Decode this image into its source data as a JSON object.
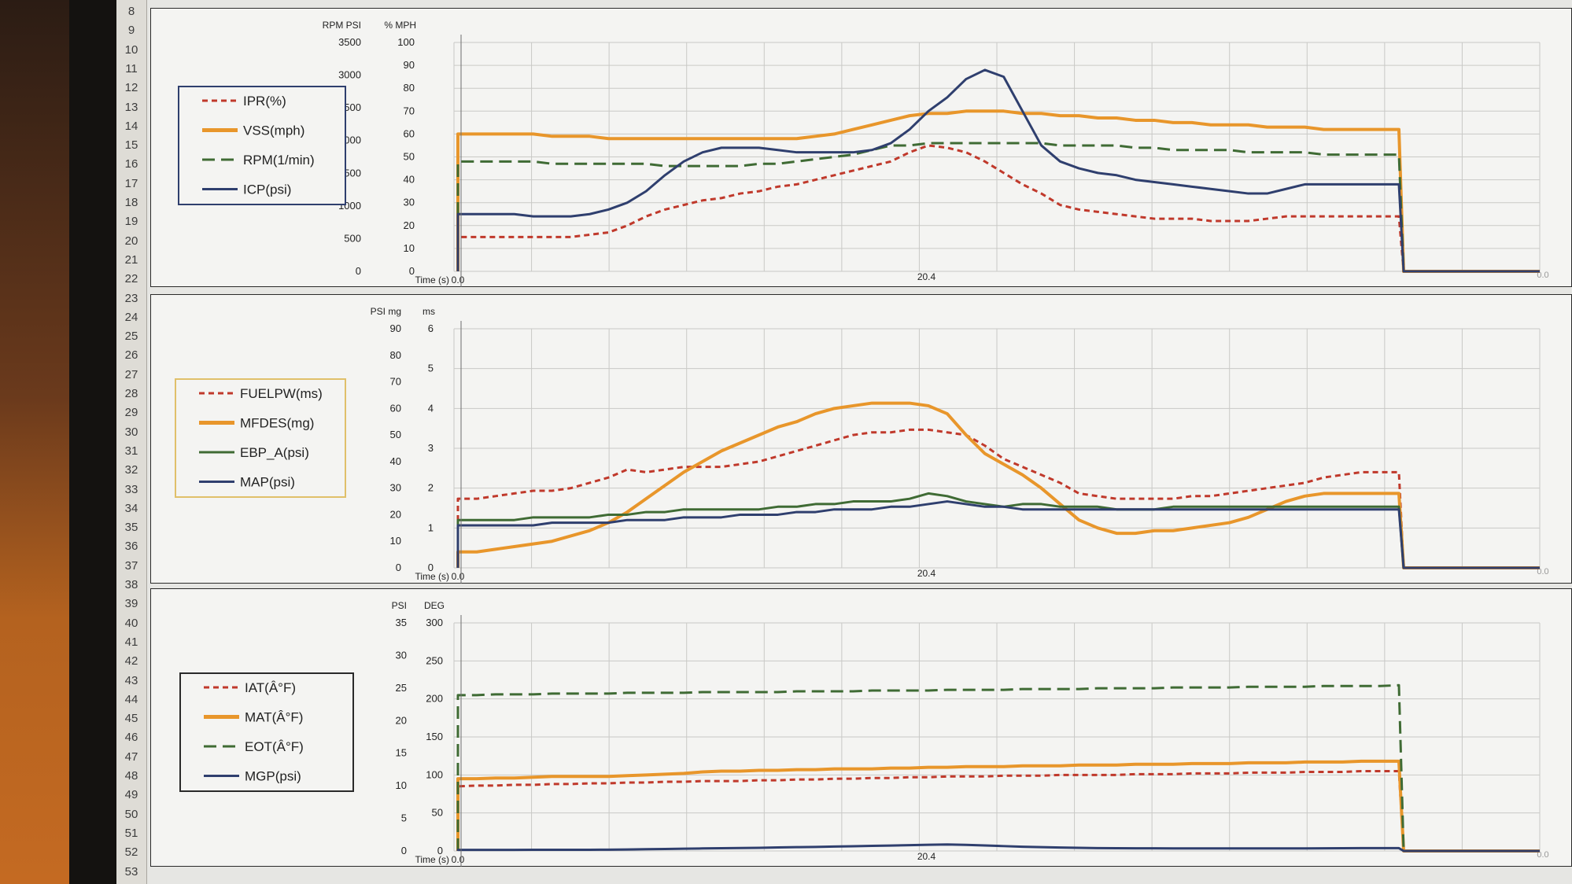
{
  "row_numbers": [
    "8",
    "9",
    "10",
    "11",
    "12",
    "13",
    "14",
    "15",
    "16",
    "17",
    "18",
    "19",
    "20",
    "21",
    "22",
    "23",
    "24",
    "25",
    "26",
    "27",
    "28",
    "29",
    "30",
    "31",
    "32",
    "33",
    "34",
    "35",
    "36",
    "37",
    "38",
    "39",
    "40",
    "41",
    "42",
    "43",
    "44",
    "45",
    "46",
    "47",
    "48",
    "49",
    "50",
    "51",
    "52",
    "53"
  ],
  "chart_data": [
    {
      "type": "line",
      "title": "",
      "axis_titles": {
        "rpm_psi": "RPM PSI",
        "pct_mph": "% MPH"
      },
      "xlabel": "Time (s)",
      "x_tick_labels": [
        "0.0",
        "20.4",
        "0.0"
      ],
      "y_ticks_left": [
        "0",
        "500",
        "1000",
        "1500",
        "2000",
        "2500",
        "3000",
        "3500"
      ],
      "y_ticks_right": [
        "0",
        "10",
        "20",
        "30",
        "40",
        "50",
        "60",
        "70",
        "80",
        "90",
        "100"
      ],
      "ylim": [
        0,
        100
      ],
      "legend_position": "left",
      "grid": true,
      "x": [
        0,
        2,
        4,
        6,
        8,
        10,
        12,
        14,
        16,
        18,
        20,
        22,
        24,
        26,
        28,
        30,
        32,
        34,
        36,
        38,
        40,
        42,
        44,
        46,
        48,
        50,
        52,
        54,
        56,
        58,
        60,
        62,
        64,
        66,
        68,
        70,
        72,
        74,
        76,
        78,
        80,
        82,
        84,
        86,
        88,
        90,
        92,
        94,
        96,
        98,
        100
      ],
      "series": [
        {
          "name": "IPR(%)",
          "color": "#c0392b",
          "dash": "short",
          "values": [
            15,
            15,
            15,
            15,
            15,
            15,
            15,
            16,
            17,
            20,
            24,
            27,
            29,
            31,
            32,
            34,
            35,
            37,
            38,
            40,
            42,
            44,
            46,
            48,
            52,
            55,
            54,
            52,
            48,
            43,
            38,
            34,
            29,
            27,
            26,
            25,
            24,
            23,
            23,
            23,
            22,
            22,
            22,
            23,
            24,
            24,
            24,
            24,
            24,
            24,
            24
          ]
        },
        {
          "name": "VSS(mph)",
          "color": "#e8962b",
          "dash": "solid",
          "values": [
            60,
            60,
            60,
            60,
            60,
            59,
            59,
            59,
            58,
            58,
            58,
            58,
            58,
            58,
            58,
            58,
            58,
            58,
            58,
            59,
            60,
            62,
            64,
            66,
            68,
            69,
            69,
            70,
            70,
            70,
            69,
            69,
            68,
            68,
            67,
            67,
            66,
            66,
            65,
            65,
            64,
            64,
            64,
            63,
            63,
            63,
            62,
            62,
            62,
            62,
            62
          ]
        },
        {
          "name": "RPM(1/min)",
          "color": "#3f6b34",
          "dash": "long",
          "values": [
            48,
            48,
            48,
            48,
            48,
            47,
            47,
            47,
            47,
            47,
            47,
            46,
            46,
            46,
            46,
            46,
            47,
            47,
            48,
            49,
            50,
            51,
            53,
            55,
            55,
            56,
            56,
            56,
            56,
            56,
            56,
            56,
            55,
            55,
            55,
            55,
            54,
            54,
            53,
            53,
            53,
            53,
            52,
            52,
            52,
            52,
            51,
            51,
            51,
            51,
            51
          ]
        },
        {
          "name": "ICP(psi)",
          "color": "#2f3f6e",
          "dash": "solid",
          "values": [
            25,
            25,
            25,
            25,
            24,
            24,
            24,
            25,
            27,
            30,
            35,
            42,
            48,
            52,
            54,
            54,
            54,
            53,
            52,
            52,
            52,
            52,
            53,
            56,
            62,
            70,
            76,
            84,
            88,
            85,
            70,
            55,
            48,
            45,
            43,
            42,
            40,
            39,
            38,
            37,
            36,
            35,
            34,
            34,
            36,
            38,
            38,
            38,
            38,
            38,
            38
          ]
        }
      ]
    },
    {
      "type": "line",
      "title": "",
      "axis_titles": {
        "psi_mg": "PSI mg",
        "ms": "ms"
      },
      "xlabel": "Time (s)",
      "x_tick_labels": [
        "0.0",
        "20.4",
        "0.0"
      ],
      "y_ticks_left": [
        "0",
        "10",
        "20",
        "30",
        "40",
        "50",
        "60",
        "70",
        "80",
        "90"
      ],
      "y_ticks_right": [
        "0",
        "1",
        "2",
        "3",
        "4",
        "5",
        "6"
      ],
      "ylim": [
        0,
        90
      ],
      "legend_position": "left",
      "grid": true,
      "x": [
        0,
        2,
        4,
        6,
        8,
        10,
        12,
        14,
        16,
        18,
        20,
        22,
        24,
        26,
        28,
        30,
        32,
        34,
        36,
        38,
        40,
        42,
        44,
        46,
        48,
        50,
        52,
        54,
        56,
        58,
        60,
        62,
        64,
        66,
        68,
        70,
        72,
        74,
        76,
        78,
        80,
        82,
        84,
        86,
        88,
        90,
        92,
        94,
        96,
        98,
        100
      ],
      "series": [
        {
          "name": "FUELPW(ms)",
          "color": "#c0392b",
          "dash": "short",
          "values": [
            26,
            26,
            27,
            28,
            29,
            29,
            30,
            32,
            34,
            37,
            36,
            37,
            38,
            38,
            38,
            39,
            40,
            42,
            44,
            46,
            48,
            50,
            51,
            51,
            52,
            52,
            51,
            50,
            46,
            41,
            38,
            35,
            32,
            28,
            27,
            26,
            26,
            26,
            26,
            27,
            27,
            28,
            29,
            30,
            31,
            32,
            34,
            35,
            36,
            36,
            36
          ]
        },
        {
          "name": "MFDES(mg)",
          "color": "#e8962b",
          "dash": "solid",
          "values": [
            6,
            6,
            7,
            8,
            9,
            10,
            12,
            14,
            17,
            21,
            26,
            31,
            36,
            40,
            44,
            47,
            50,
            53,
            55,
            58,
            60,
            61,
            62,
            62,
            62,
            61,
            58,
            50,
            43,
            39,
            35,
            30,
            24,
            18,
            15,
            13,
            13,
            14,
            14,
            15,
            16,
            17,
            19,
            22,
            25,
            27,
            28,
            28,
            28,
            28,
            28
          ]
        },
        {
          "name": "EBP_A(psi)",
          "color": "#3f6b34",
          "dash": "solid",
          "values": [
            18,
            18,
            18,
            18,
            19,
            19,
            19,
            19,
            20,
            20,
            21,
            21,
            22,
            22,
            22,
            22,
            22,
            23,
            23,
            24,
            24,
            25,
            25,
            25,
            26,
            28,
            27,
            25,
            24,
            23,
            24,
            24,
            23,
            23,
            23,
            22,
            22,
            22,
            23,
            23,
            23,
            23,
            23,
            23,
            23,
            23,
            23,
            23,
            23,
            23,
            23
          ]
        },
        {
          "name": "MAP(psi)",
          "color": "#2f3f6e",
          "dash": "solid",
          "values": [
            16,
            16,
            16,
            16,
            16,
            17,
            17,
            17,
            17,
            18,
            18,
            18,
            19,
            19,
            19,
            20,
            20,
            20,
            21,
            21,
            22,
            22,
            22,
            23,
            23,
            24,
            25,
            24,
            23,
            23,
            22,
            22,
            22,
            22,
            22,
            22,
            22,
            22,
            22,
            22,
            22,
            22,
            22,
            22,
            22,
            22,
            22,
            22,
            22,
            22,
            22
          ]
        }
      ]
    },
    {
      "type": "line",
      "title": "",
      "axis_titles": {
        "psi": "PSI",
        "deg": "DEG"
      },
      "xlabel": "Time (s)",
      "x_tick_labels": [
        "0.0",
        "20.4",
        "0.0"
      ],
      "y_ticks_left": [
        "0",
        "5",
        "10",
        "15",
        "20",
        "25",
        "30",
        "35"
      ],
      "y_ticks_right": [
        "0",
        "50",
        "100",
        "150",
        "200",
        "250",
        "300"
      ],
      "ylim": [
        0,
        300
      ],
      "legend_position": "left",
      "grid": true,
      "x": [
        0,
        2,
        4,
        6,
        8,
        10,
        12,
        14,
        16,
        18,
        20,
        22,
        24,
        26,
        28,
        30,
        32,
        34,
        36,
        38,
        40,
        42,
        44,
        46,
        48,
        50,
        52,
        54,
        56,
        58,
        60,
        62,
        64,
        66,
        68,
        70,
        72,
        74,
        76,
        78,
        80,
        82,
        84,
        86,
        88,
        90,
        92,
        94,
        96,
        98,
        100
      ],
      "series": [
        {
          "name": "IAT(Â°F)",
          "color": "#c0392b",
          "dash": "short",
          "values": [
            85,
            86,
            86,
            87,
            87,
            88,
            88,
            89,
            89,
            90,
            90,
            91,
            91,
            92,
            92,
            92,
            93,
            93,
            94,
            94,
            95,
            95,
            96,
            96,
            97,
            97,
            98,
            98,
            98,
            99,
            99,
            99,
            100,
            100,
            100,
            100,
            101,
            101,
            101,
            102,
            102,
            102,
            103,
            103,
            103,
            104,
            104,
            104,
            105,
            105,
            105
          ]
        },
        {
          "name": "MAT(Â°F)",
          "color": "#e8962b",
          "dash": "solid",
          "values": [
            95,
            95,
            96,
            96,
            97,
            98,
            98,
            98,
            98,
            99,
            100,
            101,
            102,
            104,
            105,
            105,
            106,
            106,
            107,
            107,
            108,
            108,
            108,
            109,
            109,
            110,
            110,
            111,
            111,
            111,
            112,
            112,
            112,
            113,
            113,
            113,
            114,
            114,
            114,
            115,
            115,
            115,
            116,
            116,
            116,
            117,
            117,
            117,
            118,
            118,
            118
          ]
        },
        {
          "name": "EOT(Â°F)",
          "color": "#3f6b34",
          "dash": "long",
          "values": [
            205,
            205,
            206,
            206,
            206,
            207,
            207,
            207,
            207,
            208,
            208,
            208,
            208,
            209,
            209,
            209,
            209,
            209,
            210,
            210,
            210,
            210,
            211,
            211,
            211,
            211,
            212,
            212,
            212,
            212,
            213,
            213,
            213,
            213,
            214,
            214,
            214,
            214,
            215,
            215,
            215,
            215,
            216,
            216,
            216,
            216,
            217,
            217,
            217,
            217,
            218
          ]
        },
        {
          "name": "MGP(psi)",
          "color": "#2f3f6e",
          "dash": "solid",
          "values": [
            1.4,
            1.4,
            1.4,
            1.4,
            1.5,
            1.5,
            1.6,
            1.6,
            1.7,
            2,
            2.3,
            2.6,
            3,
            3.3,
            3.6,
            3.9,
            4.2,
            4.6,
            5,
            5.3,
            5.8,
            6.2,
            6.7,
            7.1,
            7.6,
            8.1,
            8.5,
            8,
            7.3,
            6.4,
            5.6,
            5,
            4.5,
            4.1,
            3.8,
            3.6,
            3.5,
            3.5,
            3.4,
            3.4,
            3.4,
            3.3,
            3.3,
            3.3,
            3.4,
            3.4,
            3.5,
            3.6,
            3.7,
            3.7,
            3.7
          ]
        }
      ]
    }
  ]
}
